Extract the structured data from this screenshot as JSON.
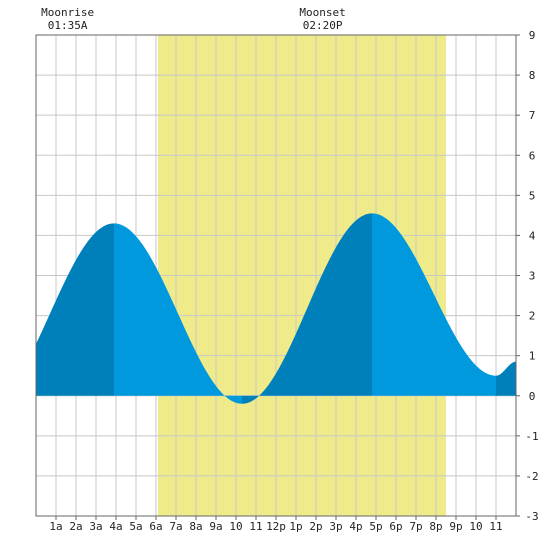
{
  "chart_data": {
    "type": "area",
    "title": "",
    "xlabel": "",
    "ylabel": "",
    "xlim": [
      0,
      24
    ],
    "ylim": [
      -3,
      9
    ],
    "grid": true,
    "x_ticks": [
      {
        "x": 1,
        "label": "1a"
      },
      {
        "x": 2,
        "label": "2a"
      },
      {
        "x": 3,
        "label": "3a"
      },
      {
        "x": 4,
        "label": "4a"
      },
      {
        "x": 5,
        "label": "5a"
      },
      {
        "x": 6,
        "label": "6a"
      },
      {
        "x": 7,
        "label": "7a"
      },
      {
        "x": 8,
        "label": "8a"
      },
      {
        "x": 9,
        "label": "9a"
      },
      {
        "x": 10,
        "label": "10"
      },
      {
        "x": 11,
        "label": "11"
      },
      {
        "x": 12,
        "label": "12p"
      },
      {
        "x": 13,
        "label": "1p"
      },
      {
        "x": 14,
        "label": "2p"
      },
      {
        "x": 15,
        "label": "3p"
      },
      {
        "x": 16,
        "label": "4p"
      },
      {
        "x": 17,
        "label": "5p"
      },
      {
        "x": 18,
        "label": "6p"
      },
      {
        "x": 19,
        "label": "7p"
      },
      {
        "x": 20,
        "label": "8p"
      },
      {
        "x": 21,
        "label": "9p"
      },
      {
        "x": 22,
        "label": "10"
      },
      {
        "x": 23,
        "label": "11"
      }
    ],
    "y_ticks": [
      -3,
      -2,
      -1,
      0,
      1,
      2,
      3,
      4,
      5,
      6,
      7,
      8,
      9
    ],
    "daylight": {
      "start": 6.1,
      "end": 20.5
    },
    "extremes": [
      {
        "x": 3.9,
        "y": 4.3,
        "type": "high"
      },
      {
        "x": 10.3,
        "y": -0.2,
        "type": "low"
      },
      {
        "x": 16.8,
        "y": 4.55,
        "type": "high"
      },
      {
        "x": 23.0,
        "y": 0.5,
        "type": "low"
      }
    ],
    "curve_start": {
      "x": 0,
      "y": 2.0
    },
    "curve_end": {
      "x": 24,
      "y": 0.85
    },
    "annotations": [
      {
        "label": "Moonrise",
        "time": "01:35A",
        "x": 1.58
      },
      {
        "label": "Moonset",
        "time": "02:20P",
        "x": 14.33
      }
    ],
    "colors": {
      "daylight": "#f0eb8a",
      "tide_light": "#0099dd",
      "tide_dark": "#0080bb",
      "grid": "#c8c8c8",
      "axis": "#666666"
    }
  }
}
